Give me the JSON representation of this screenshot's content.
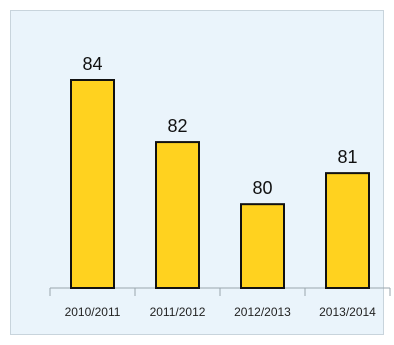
{
  "chart_data": {
    "type": "bar",
    "title": "",
    "xlabel": "",
    "ylabel": "",
    "categories": [
      "2010/2011",
      "2011/2012",
      "2012/2013",
      "2013/2014"
    ],
    "values": [
      84,
      82,
      80,
      81
    ],
    "bar_color": "#ffd21f",
    "bar_edge_color": "#111111",
    "background_color": "#eaf4fb",
    "grid": false,
    "data_labels": true
  }
}
